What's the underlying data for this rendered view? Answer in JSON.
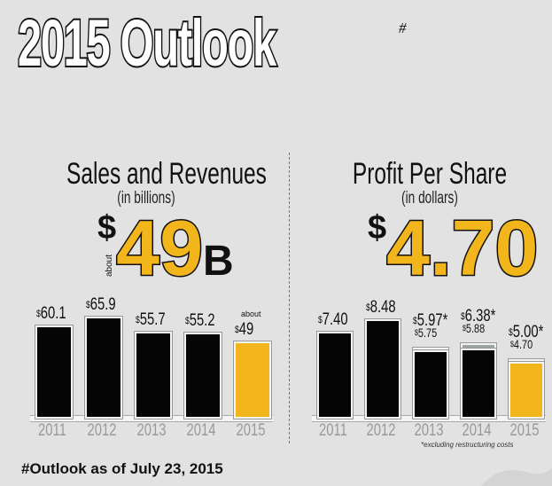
{
  "title": "2015 Outlook",
  "title_mark": "#",
  "footer": "#Outlook as of July 23, 2015",
  "footnote": "*excluding restructuring costs",
  "colors": {
    "bar": "#050505",
    "highlight": "#f3b51c",
    "restructuring": "#9ea3a6",
    "background": "#e2e2e2"
  },
  "chart_data": [
    {
      "type": "bar",
      "title": "Sales and Revenues",
      "subtitle": "(in billions)",
      "headline": {
        "prefix": "$",
        "value": "49",
        "suffix": "B",
        "qualifier": "about"
      },
      "categories": [
        "2011",
        "2012",
        "2013",
        "2014",
        "2015"
      ],
      "values": [
        60.1,
        65.9,
        55.7,
        55.2,
        49
      ],
      "labels": [
        "60.1",
        "65.9",
        "55.7",
        "55.2",
        "49"
      ],
      "label_prefix": "$",
      "highlight_last": true,
      "last_qualifier": "about",
      "ylim": [
        0,
        70
      ]
    },
    {
      "type": "bar",
      "title": "Profit Per Share",
      "subtitle": "(in dollars)",
      "headline": {
        "prefix": "$",
        "value": "4.70"
      },
      "categories": [
        "2011",
        "2012",
        "2013",
        "2014",
        "2015"
      ],
      "values": [
        7.4,
        8.48,
        5.75,
        5.88,
        4.7
      ],
      "labels": [
        "7.40",
        "8.48",
        "5.75",
        "5.88",
        "4.70"
      ],
      "excluding_restructuring": [
        null,
        null,
        5.97,
        6.38,
        5.0
      ],
      "excluding_labels": [
        null,
        null,
        "5.97*",
        "6.38*",
        "5.00*"
      ],
      "label_prefix": "$",
      "highlight_last": true,
      "ylim": [
        0,
        9.3
      ]
    }
  ]
}
